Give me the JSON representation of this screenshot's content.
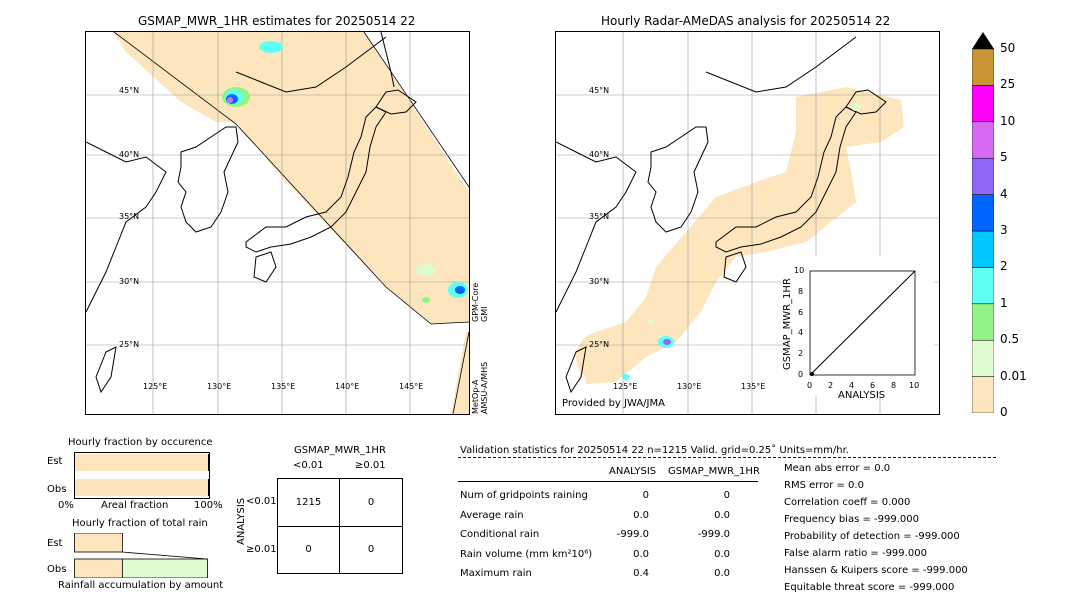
{
  "left_map": {
    "title": "GSMAP_MWR_1HR estimates for 20250514 22",
    "lat_labels": [
      "45°N",
      "40°N",
      "35°N",
      "30°N",
      "25°N"
    ],
    "lon_labels": [
      "125°E",
      "130°E",
      "135°E",
      "140°E",
      "145°E"
    ],
    "sensor_labels": [
      "GPM-Core\nGMI",
      "MetOp-A\nAMSU-A/MHS"
    ]
  },
  "right_map": {
    "title": "Hourly Radar-AMeDAS analysis for 20250514 22",
    "lat_labels": [
      "45°N",
      "40°N",
      "35°N",
      "30°N",
      "25°N"
    ],
    "lon_labels": [
      "125°E",
      "130°E",
      "135°E"
    ],
    "provided_by": "Provided by JWA/JMA"
  },
  "scatter_inset": {
    "ylabel": "GSMAP_MWR_1HR",
    "xlabel": "ANALYSIS",
    "ticks": [
      "0",
      "2",
      "4",
      "6",
      "8",
      "10"
    ]
  },
  "colorbar": {
    "labels": [
      "0",
      "0.01",
      "0.5",
      "1",
      "2",
      "3",
      "4",
      "5",
      "10",
      "25",
      "50"
    ],
    "colors": [
      "#fde6bd",
      "#e0fbd0",
      "#90f585",
      "#5ffff6",
      "#00c8ff",
      "#0066ff",
      "#8e67f4",
      "#d76af2",
      "#ff00f8",
      "#c99434"
    ]
  },
  "fraction_occurrence": {
    "title": "Hourly fraction by occurence",
    "rows": [
      "Est",
      "Obs"
    ],
    "axis": [
      "0%",
      "Areal fraction",
      "100%"
    ]
  },
  "fraction_total": {
    "title": "Hourly fraction of total rain",
    "rows": [
      "Est",
      "Obs"
    ],
    "footer": "Rainfall accumulation by amount"
  },
  "contingency": {
    "title": "GSMAP_MWR_1HR",
    "col_headers": [
      "<0.01",
      "≥0.01"
    ],
    "row_headers": [
      "<0.01",
      "≥0.01"
    ],
    "side_label": "ANALYSIS",
    "cells": [
      [
        "1215",
        "0"
      ],
      [
        "0",
        "0"
      ]
    ]
  },
  "validation": {
    "header": "Validation statistics for 20250514 22  n=1215 Valid. grid=0.25˚ Units=mm/hr.",
    "col_headers": [
      "ANALYSIS",
      "GSMAP_MWR_1HR"
    ],
    "rows": [
      {
        "label": "Num of gridpoints raining",
        "analysis": "0",
        "gsmap": "0"
      },
      {
        "label": "Average rain",
        "analysis": "0.0",
        "gsmap": "0.0"
      },
      {
        "label": "Conditional rain",
        "analysis": "-999.0",
        "gsmap": "-999.0"
      },
      {
        "label": "Rain volume (mm km²10⁶)",
        "analysis": "0.0",
        "gsmap": "0.0"
      },
      {
        "label": "Maximum rain",
        "analysis": "0.4",
        "gsmap": "0.0"
      }
    ],
    "scores": [
      "Mean abs error =    0.0",
      "RMS error =    0.0",
      "Correlation coeff =  0.000",
      "Frequency bias = -999.000",
      "Probability of detection = -999.000",
      "False alarm ratio = -999.000",
      "Hanssen & Kuipers score = -999.000",
      "Equitable threat score = -999.000"
    ]
  },
  "chart_data": [
    {
      "type": "heatmap",
      "title": "GSMAP_MWR_1HR estimates for 20250514 22",
      "lon_ticks": [
        125,
        130,
        135,
        140,
        145
      ],
      "lat_ticks": [
        45,
        40,
        35,
        30,
        25
      ]
    },
    {
      "type": "heatmap",
      "title": "Hourly Radar-AMeDAS analysis for 20250514 22",
      "lon_ticks": [
        125,
        130,
        135
      ],
      "lat_ticks": [
        45,
        40,
        35,
        30,
        25
      ]
    },
    {
      "type": "scatter",
      "xlabel": "ANALYSIS",
      "ylabel": "GSMAP_MWR_1HR",
      "xlim": [
        0,
        10
      ],
      "ylim": [
        0,
        10
      ]
    },
    {
      "type": "bar",
      "title": "Hourly fraction by occurence",
      "categories": [
        "Est",
        "Obs"
      ],
      "values": [
        1.0,
        1.0
      ]
    },
    {
      "type": "bar",
      "title": "Hourly fraction of total rain",
      "categories": [
        "Est",
        "Obs"
      ],
      "values": [
        0.36,
        1.0
      ]
    }
  ]
}
